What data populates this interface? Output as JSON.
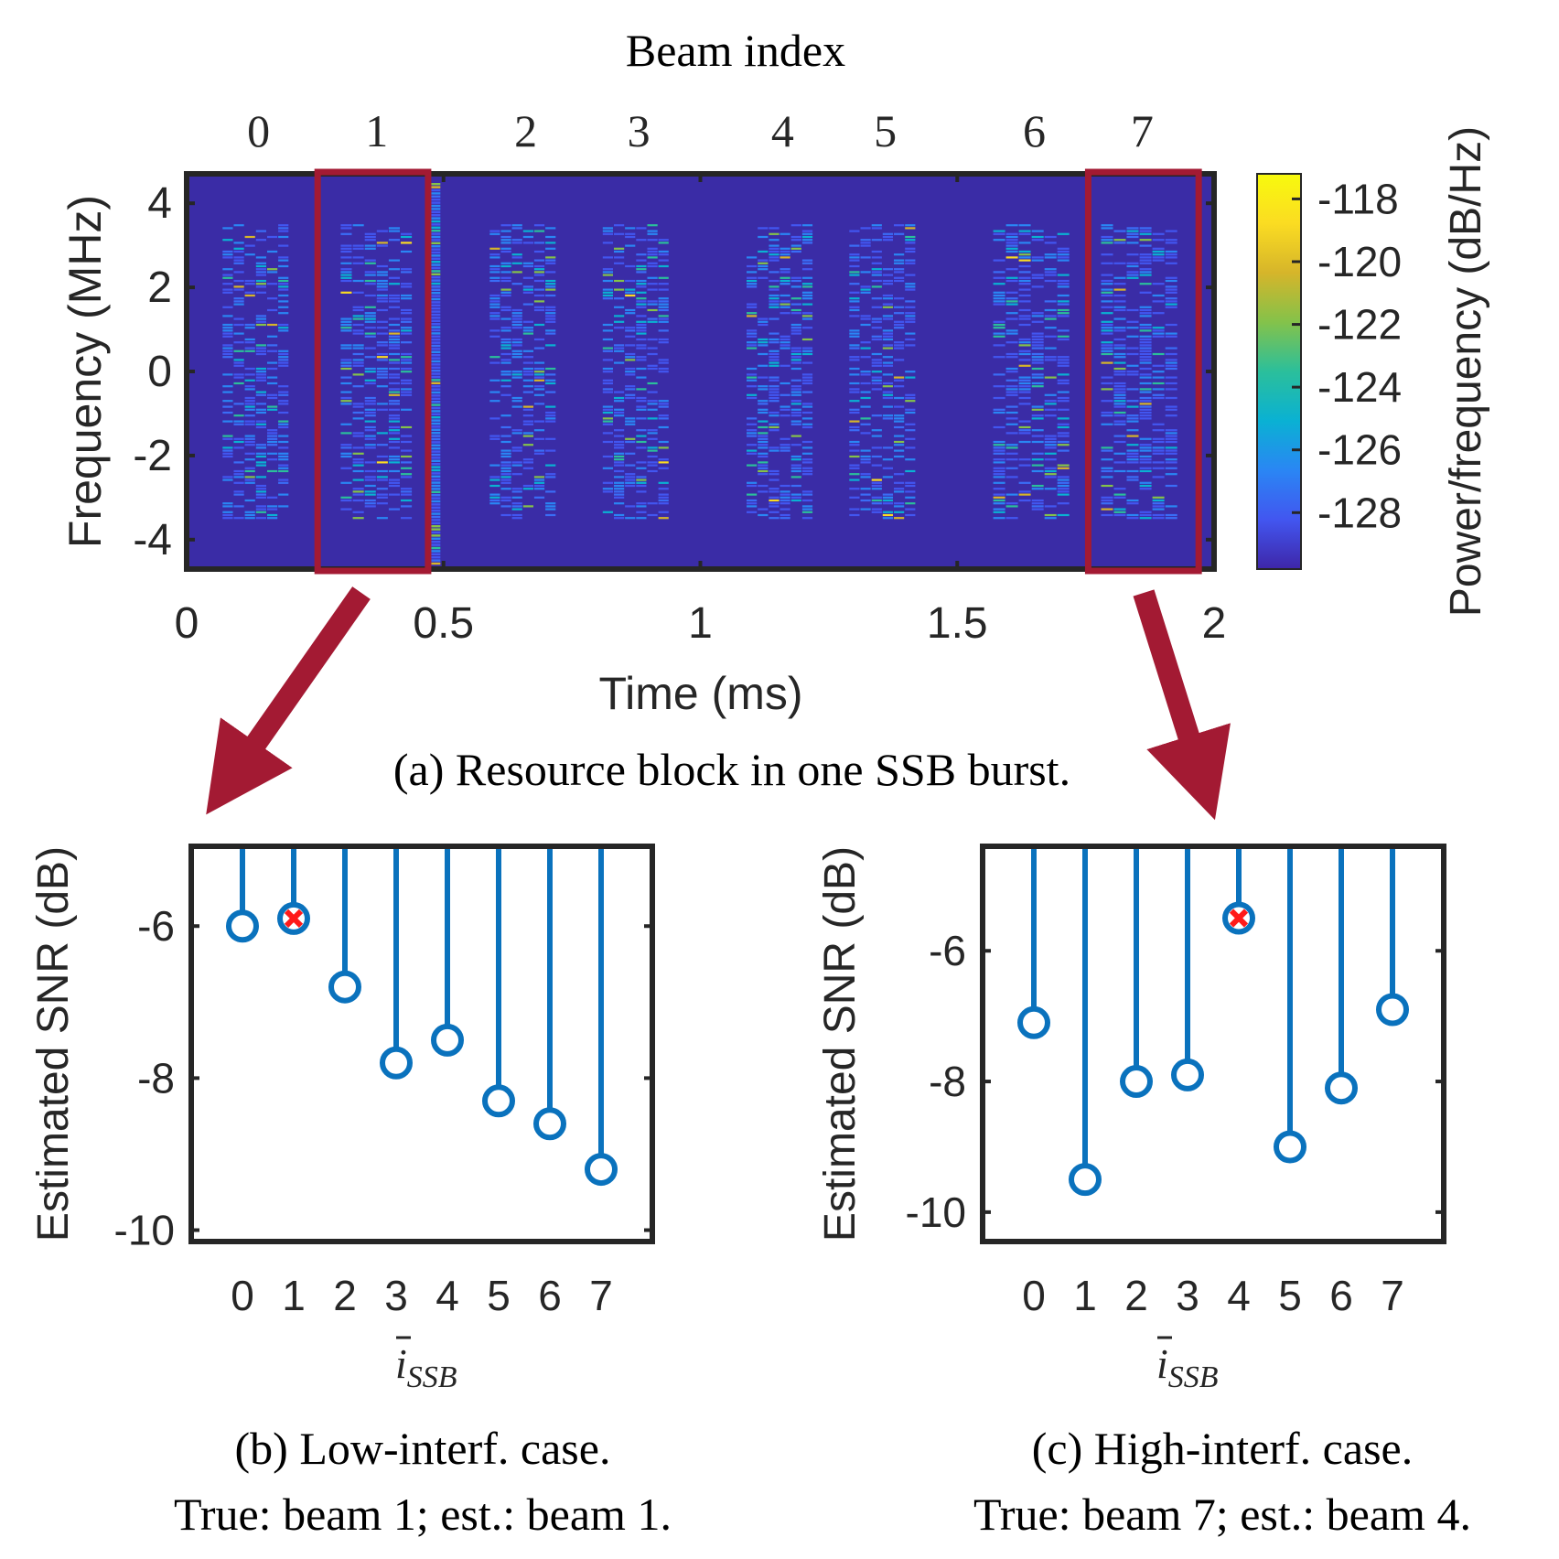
{
  "colors": {
    "background": "#3a2ca6",
    "axis": "#262626",
    "highlight_box": "#a31a33",
    "stem": "#0a72bd",
    "estimate_marker": "#ff1a1a"
  },
  "colormap": [
    "#3e26a8",
    "#4256f0",
    "#2a86f4",
    "#0ab1d3",
    "#2bbf9b",
    "#84c24a",
    "#d6b52a",
    "#fbdc22",
    "#f8fa0d"
  ],
  "chart_data": [
    {
      "id": "a",
      "type": "heatmap",
      "title": "Beam index",
      "caption": "(a) Resource block in one SSB burst.",
      "xlabel": "Time (ms)",
      "ylabel": "Frequency (MHz)",
      "xlim": [
        0,
        2
      ],
      "ylim": [
        -4.7,
        4.7
      ],
      "xticks": [
        0,
        0.5,
        1,
        1.5,
        2
      ],
      "xtick_labels": [
        "0",
        "0.5",
        "1",
        "1.5",
        "2"
      ],
      "yticks": [
        4,
        2,
        0,
        -2,
        -4
      ],
      "ytick_labels": [
        "4",
        "2",
        "0",
        "-2",
        "-4"
      ],
      "beam_index_labels": [
        "0",
        "1",
        "2",
        "3",
        "4",
        "5",
        "6",
        "7"
      ],
      "beam_centers_ms": [
        0.14,
        0.37,
        0.66,
        0.88,
        1.16,
        1.36,
        1.65,
        1.86
      ],
      "beam_bursts": [
        {
          "beam": 0,
          "t_start": 0.07,
          "t_end": 0.2,
          "f_min": -3.5,
          "f_max": 3.5
        },
        {
          "beam": 1,
          "t_start": 0.3,
          "t_end": 0.44,
          "f_min": -3.5,
          "f_max": 3.5
        },
        {
          "beam": 2,
          "t_start": 0.59,
          "t_end": 0.72,
          "f_min": -3.5,
          "f_max": 3.5
        },
        {
          "beam": 3,
          "t_start": 0.81,
          "t_end": 0.94,
          "f_min": -3.5,
          "f_max": 3.5
        },
        {
          "beam": 4,
          "t_start": 1.09,
          "t_end": 1.22,
          "f_min": -3.5,
          "f_max": 3.5
        },
        {
          "beam": 5,
          "t_start": 1.29,
          "t_end": 1.42,
          "f_min": -3.5,
          "f_max": 3.5
        },
        {
          "beam": 6,
          "t_start": 1.57,
          "t_end": 1.72,
          "f_min": -3.5,
          "f_max": 3.5
        },
        {
          "beam": 7,
          "t_start": 1.78,
          "t_end": 1.93,
          "f_min": -3.5,
          "f_max": 3.5
        }
      ],
      "interference_line_ms": 0.485,
      "highlight_boxes": [
        {
          "beam": 1,
          "t_start": 0.255,
          "t_end": 0.47
        },
        {
          "beam": 7,
          "t_start": 1.755,
          "t_end": 1.97
        }
      ],
      "colorbar": {
        "label": "Power/frequency (dB/Hz)",
        "range": [
          -129.8,
          -117.2
        ],
        "ticks": [
          -118,
          -120,
          -122,
          -124,
          -126,
          -128
        ],
        "tick_labels": [
          "-118",
          "-120",
          "-122",
          "-124",
          "-126",
          "-128"
        ]
      }
    },
    {
      "id": "b",
      "type": "stem",
      "caption_line1": "(b) Low-interf. case.",
      "caption_line2": "True: beam 1; est.: beam 1.",
      "xlabel": "ī_SSB",
      "xlabel_main": "i",
      "xlabel_sub": "SSB",
      "ylabel": "Estimated SNR (dB)",
      "ylim": [
        -10.15,
        -4.95
      ],
      "xlim": [
        -1,
        8
      ],
      "categories": [
        "0",
        "1",
        "2",
        "3",
        "4",
        "5",
        "6",
        "7"
      ],
      "values": [
        -6.0,
        -5.9,
        -6.8,
        -7.8,
        -7.5,
        -8.3,
        -8.6,
        -9.2
      ],
      "estimated_beam": 1,
      "yticks": [
        -6,
        -8,
        -10
      ],
      "ytick_labels": [
        "-6",
        "-8",
        "-10"
      ]
    },
    {
      "id": "c",
      "type": "stem",
      "caption_line1": "(c) High-interf. case.",
      "caption_line2": "True: beam 7; est.: beam 4.",
      "xlabel": "ī_SSB",
      "xlabel_main": "i",
      "xlabel_sub": "SSB",
      "ylabel": "Estimated SNR (dB)",
      "ylim": [
        -10.45,
        -4.4
      ],
      "xlim": [
        -1,
        8
      ],
      "categories": [
        "0",
        "1",
        "2",
        "3",
        "4",
        "5",
        "6",
        "7"
      ],
      "values": [
        -7.1,
        -9.5,
        -8.0,
        -7.9,
        -5.5,
        -9.0,
        -8.1,
        -6.9
      ],
      "estimated_beam": 4,
      "yticks": [
        -6,
        -8,
        -10
      ],
      "ytick_labels": [
        "-6",
        "-8",
        "-10"
      ]
    }
  ]
}
